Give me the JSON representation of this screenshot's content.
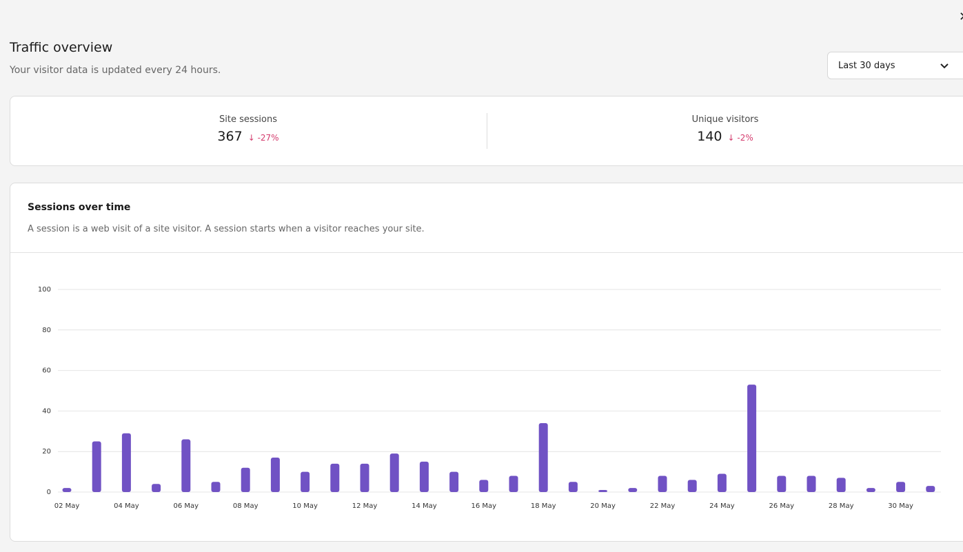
{
  "header": {
    "title": "Traffic overview",
    "subtitle": "Your visitor data is updated every 24 hours.",
    "range_select": "Last 30 days"
  },
  "stats": [
    {
      "label": "Site sessions",
      "value": "367",
      "change": "-27%"
    },
    {
      "label": "Unique visitors",
      "value": "140",
      "change": "-2%"
    }
  ],
  "panel": {
    "title": "Sessions over time",
    "description": "A session is a web visit of a site visitor. A session starts when a visitor reaches your site."
  },
  "chart_data": {
    "type": "bar",
    "color": "#7052c4",
    "categories": [
      "02 May",
      null,
      "04 May",
      null,
      "06 May",
      null,
      "08 May",
      null,
      "10 May",
      null,
      "12 May",
      null,
      "14 May",
      null,
      "16 May",
      null,
      "18 May",
      null,
      "20 May",
      null,
      "22 May",
      null,
      "24 May",
      null,
      "26 May",
      null,
      "28 May",
      null,
      "30 May",
      null
    ],
    "values": [
      2,
      25,
      29,
      4,
      26,
      5,
      12,
      17,
      10,
      14,
      14,
      19,
      15,
      10,
      6,
      8,
      34,
      5,
      1,
      2,
      8,
      6,
      9,
      53,
      8,
      8,
      7,
      2,
      5,
      3
    ],
    "ylim": [
      0,
      100
    ],
    "yticks": [
      0,
      20,
      40,
      60,
      80,
      100
    ],
    "grid": true
  }
}
